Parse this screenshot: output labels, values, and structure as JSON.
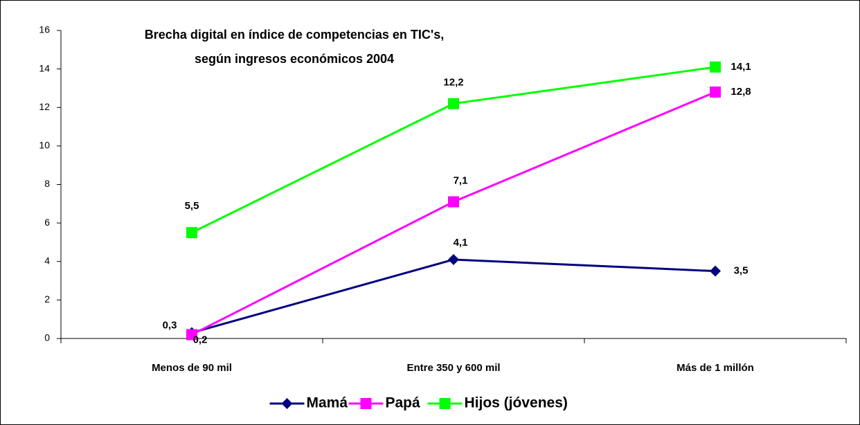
{
  "chart_data": {
    "type": "line",
    "title": [
      "Brecha digital en índice de competencias en TIC's,",
      "según ingresos económicos 2004"
    ],
    "categories": [
      "Menos de 90 mil",
      "Entre 350 y 600 mil",
      "Más de 1 millón"
    ],
    "series": [
      {
        "name": "Mamá",
        "color": "#000080",
        "marker": "diamond",
        "values": [
          0.3,
          4.1,
          3.5
        ],
        "value_labels": [
          "0,3",
          "4,1",
          "3,5"
        ]
      },
      {
        "name": "Papá",
        "color": "#ff00ff",
        "marker": "square",
        "values": [
          0.2,
          7.1,
          12.8
        ],
        "value_labels": [
          "0,2",
          "7,1",
          "12,8"
        ]
      },
      {
        "name": "Hijos (jóvenes)",
        "color": "#00ff00",
        "marker": "square",
        "values": [
          5.5,
          12.2,
          14.1
        ],
        "value_labels": [
          "5,5",
          "12,2",
          "14,1"
        ]
      }
    ],
    "ylim": [
      0,
      16
    ],
    "yticks": [
      0,
      2,
      4,
      6,
      8,
      10,
      12,
      14,
      16
    ],
    "grid": false,
    "legend": "bottom"
  }
}
